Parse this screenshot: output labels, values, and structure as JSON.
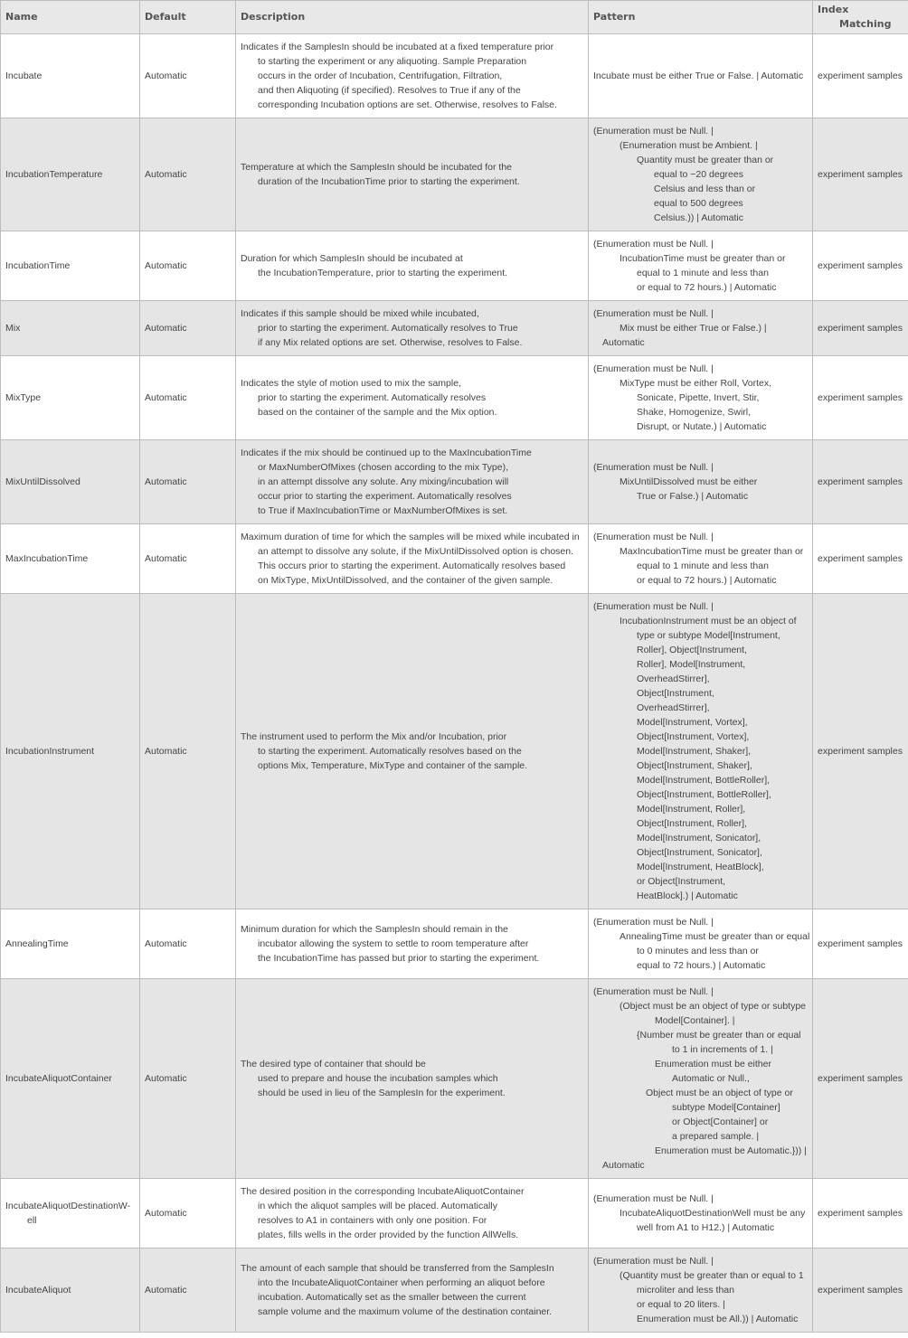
{
  "headers": {
    "name": "Name",
    "default": "Default",
    "description": "Description",
    "pattern": "Pattern",
    "index_1": "Index",
    "index_2": "Matching"
  },
  "rows": [
    {
      "name": [
        "Incubate"
      ],
      "default": "Automatic",
      "description": [
        "Indicates if the SamplesIn should be incubated at a fixed temperature prior",
        "to starting the experiment or any aliquoting. Sample Preparation",
        "occurs in the order of Incubation, Centrifugation, Filtration,",
        "and then Aliquoting (if specified).  Resolves to True if any of the",
        "corresponding Incubation options are set. Otherwise, resolves to False."
      ],
      "pattern": [
        "Incubate must be either True or False. | Automatic"
      ],
      "index": "experiment samples"
    },
    {
      "name": [
        "IncubationTemperature"
      ],
      "default": "Automatic",
      "description": [
        "Temperature at which the SamplesIn should be incubated for the",
        "duration of the IncubationTime prior to starting the experiment."
      ],
      "pattern": [
        "(Enumeration must be Null. |",
        "(Enumeration must be Ambient. |",
        "Quantity must be greater than or",
        "equal to −20 degrees",
        "Celsius and less than or",
        "equal to 500 degrees",
        "Celsius.)) | Automatic"
      ],
      "index": "experiment samples"
    },
    {
      "name": [
        "IncubationTime"
      ],
      "default": "Automatic",
      "description": [
        "Duration for which SamplesIn should be incubated at",
        "the IncubationTemperature, prior to starting the experiment."
      ],
      "pattern": [
        "(Enumeration must be Null. |",
        "IncubationTime must be greater than or",
        "equal to 1 minute and less than",
        "or equal to 72 hours.) | Automatic"
      ],
      "index": "experiment samples"
    },
    {
      "name": [
        "Mix"
      ],
      "default": "Automatic",
      "description": [
        "Indicates if this sample should be mixed while incubated,",
        "prior to starting the experiment.  Automatically resolves to True",
        "if any Mix related options are set. Otherwise, resolves to False."
      ],
      "pattern": [
        "(Enumeration must be Null. |",
        "Mix must be either True or False.) |",
        "Automatic"
      ],
      "index": "experiment samples"
    },
    {
      "name": [
        "MixType"
      ],
      "default": "Automatic",
      "description": [
        "Indicates the style of motion used to mix the sample,",
        "prior to starting the experiment.  Automatically resolves",
        "based on the container of the sample and the Mix option."
      ],
      "pattern": [
        "(Enumeration must be Null. |",
        "MixType must be either Roll, Vortex,",
        "Sonicate, Pipette, Invert, Stir,",
        "Shake, Homogenize, Swirl,",
        "Disrupt, or Nutate.) | Automatic"
      ],
      "index": "experiment samples"
    },
    {
      "name": [
        "MixUntilDissolved"
      ],
      "default": "Automatic",
      "description": [
        "Indicates if the mix should be continued up to the MaxIncubationTime",
        "or MaxNumberOfMixes (chosen according to the mix Type),",
        "in an attempt dissolve any solute. Any mixing/incubation will",
        "occur prior to starting the experiment.  Automatically resolves",
        "to True if MaxIncubationTime or MaxNumberOfMixes is set."
      ],
      "pattern": [
        "(Enumeration must be Null. |",
        "MixUntilDissolved must be either",
        "True or False.) | Automatic"
      ],
      "index": "experiment samples"
    },
    {
      "name": [
        "MaxIncubationTime"
      ],
      "default": "Automatic",
      "description": [
        "Maximum duration of time for which the samples will be mixed while incubated in",
        "an attempt to dissolve any solute, if the MixUntilDissolved option is chosen.",
        "This occurs prior to starting the experiment.  Automatically resolves based",
        "on MixType, MixUntilDissolved, and the container of the given sample."
      ],
      "pattern": [
        "(Enumeration must be Null. |",
        "MaxIncubationTime must be greater than or",
        "equal to 1 minute and less than",
        "or equal to 72 hours.) | Automatic"
      ],
      "index": "experiment samples"
    },
    {
      "name": [
        "IncubationInstrument"
      ],
      "default": "Automatic",
      "description": [
        "The instrument used to perform the Mix and/or Incubation, prior",
        "to starting the experiment.  Automatically resolves based on the",
        "options Mix, Temperature, MixType and container of the sample."
      ],
      "pattern": [
        "(Enumeration must be Null. |",
        "IncubationInstrument must be an object of",
        "type or subtype Model[Instrument,",
        "Roller], Object[Instrument,",
        "Roller], Model[Instrument,",
        "OverheadStirrer],",
        "Object[Instrument,",
        "OverheadStirrer],",
        "Model[Instrument, Vortex],",
        "Object[Instrument, Vortex],",
        "Model[Instrument, Shaker],",
        "Object[Instrument, Shaker],",
        "Model[Instrument, BottleRoller],",
        "Object[Instrument, BottleRoller],",
        "Model[Instrument, Roller],",
        "Object[Instrument, Roller],",
        "Model[Instrument, Sonicator],",
        "Object[Instrument, Sonicator],",
        "Model[Instrument, HeatBlock],",
        "or Object[Instrument,",
        "HeatBlock].) | Automatic"
      ],
      "index": "experiment samples"
    },
    {
      "name": [
        "AnnealingTime"
      ],
      "default": "Automatic",
      "description": [
        "Minimum duration for which the SamplesIn should remain in the",
        "incubator allowing the system to settle to room temperature after",
        "the IncubationTime has passed but prior to starting the experiment."
      ],
      "pattern": [
        "(Enumeration must be Null. |",
        "AnnealingTime must be greater than or equal",
        "to 0 minutes and less than or",
        "equal to 72 hours.) | Automatic"
      ],
      "index": "experiment samples"
    },
    {
      "name": [
        "IncubateAliquotContainer"
      ],
      "default": "Automatic",
      "description": [
        "The desired type of container that should be",
        "used to prepare and house the incubation samples which",
        "should be used in lieu of the SamplesIn for the experiment."
      ],
      "pattern": [
        "(Enumeration must be Null. |",
        "(Object must be an object of type or subtype",
        "Model[Container]. |",
        "{Number must be greater than or equal",
        "to 1 in increments of 1. |",
        "Enumeration must be either",
        "Automatic or Null.,",
        "Object must be an object of type or",
        "subtype Model[Container]",
        "or Object[Container] or",
        "a prepared sample. |",
        "Enumeration must be Automatic.})) |",
        "Automatic"
      ],
      "index": "experiment samples"
    },
    {
      "name": [
        "IncubateAliquotDestinationW-",
        "ell"
      ],
      "default": "Automatic",
      "description": [
        "The desired position in the corresponding IncubateAliquotContainer",
        "in which the aliquot samples will be placed.  Automatically",
        "resolves to A1 in containers with only one position.  For",
        "plates, fills wells in the order provided by the function AllWells."
      ],
      "pattern": [
        "(Enumeration must be Null. |",
        "IncubateAliquotDestinationWell must be any",
        "well from A1 to H12.) | Automatic"
      ],
      "index": "experiment samples"
    },
    {
      "name": [
        "IncubateAliquot"
      ],
      "default": "Automatic",
      "description": [
        "The amount of each sample that should be transferred from the SamplesIn",
        "into the IncubateAliquotContainer when performing an aliquot before",
        "incubation.  Automatically set as the smaller between the current",
        "sample volume and the maximum volume of the destination container."
      ],
      "pattern": [
        "(Enumeration must be Null. |",
        "(Quantity must be greater than or equal to 1",
        "microliter and less than",
        "or equal to 20 liters. |",
        "Enumeration must be All.)) | Automatic"
      ],
      "index": "experiment samples"
    }
  ]
}
